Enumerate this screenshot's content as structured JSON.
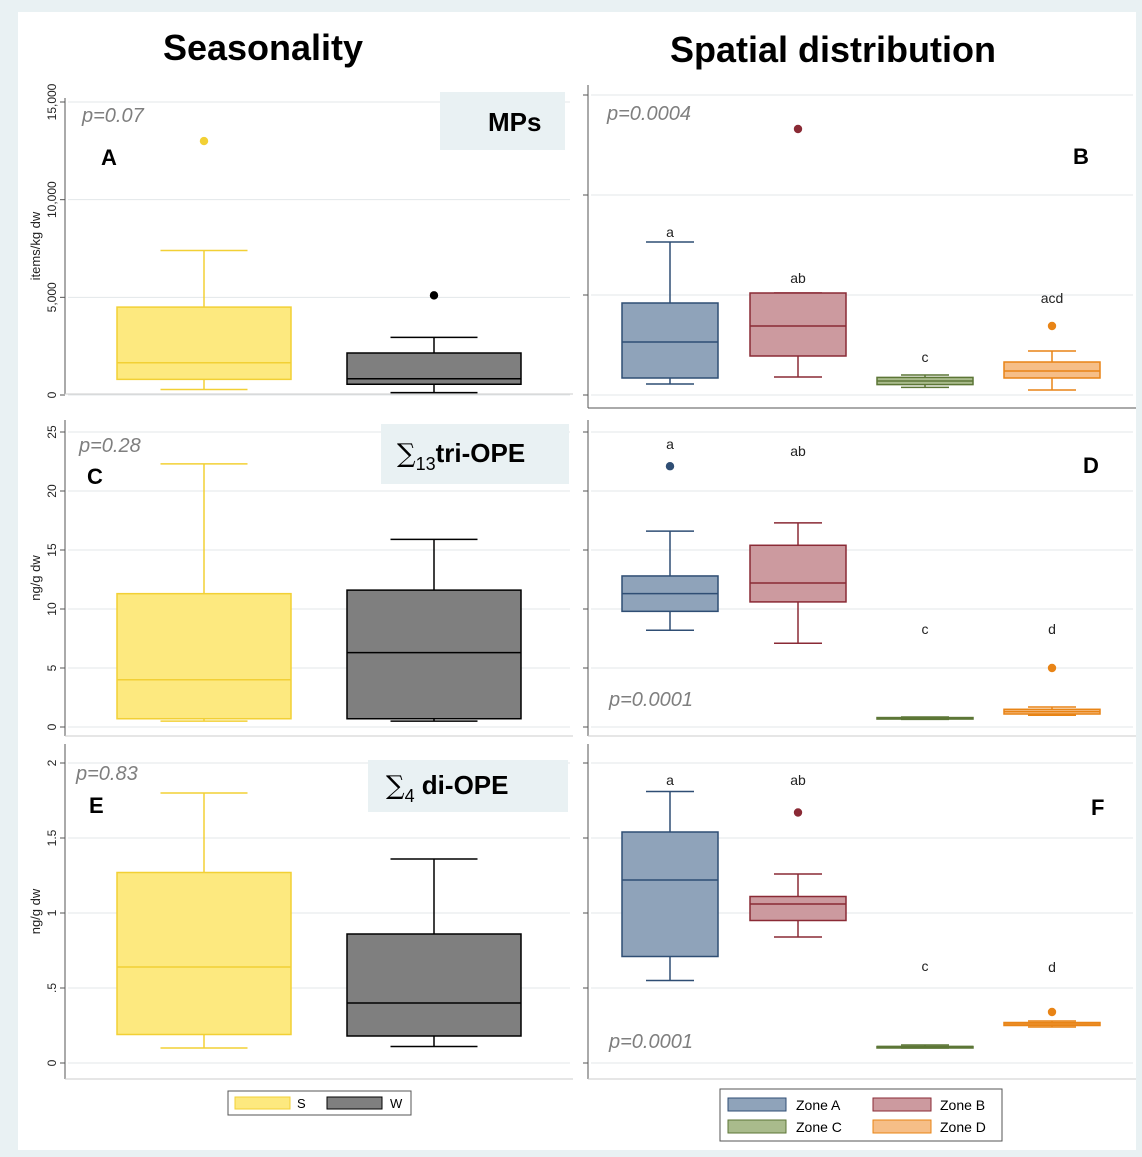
{
  "headings": {
    "left": "Seasonality",
    "right": "Spatial distribution"
  },
  "colors": {
    "S_fill": "#fde97f",
    "S_stroke": "#f2d035",
    "W_fill": "#7f7f7f",
    "W_stroke": "#000000",
    "ZoneA_fill": "#8fa3ba",
    "ZoneA_stroke": "#2f4e74",
    "ZoneB_fill": "#cc9a9f",
    "ZoneB_stroke": "#8a2a35",
    "ZoneC_fill": "#a9bb8c",
    "ZoneC_stroke": "#5c7636",
    "ZoneD_fill": "#f6be87",
    "ZoneD_stroke": "#e88416",
    "frame_bg": "#e9f1f3"
  },
  "legends": {
    "seasonality": [
      "S",
      "W"
    ],
    "spatial": [
      "Zone A",
      "Zone B",
      "Zone C",
      "Zone D"
    ]
  },
  "chart_data": [
    {
      "type": "box",
      "panel": "A",
      "title": "MPs",
      "pvalue": "p=0.07",
      "ylabel": "items/kg dw",
      "ylim": [
        0,
        15000
      ],
      "yticks": [
        {
          "v": 0,
          "label": "0"
        },
        {
          "v": 5000,
          "label": "5,000"
        },
        {
          "v": 10000,
          "label": "10,000"
        },
        {
          "v": 15000,
          "label": "15,000"
        }
      ],
      "series": [
        {
          "name": "S",
          "whisker_low": 280,
          "q1": 800,
          "median": 1650,
          "q3": 4500,
          "whisker_high": 7400,
          "outliers": [
            13000
          ]
        },
        {
          "name": "W",
          "whisker_low": 120,
          "q1": 550,
          "median": 830,
          "q3": 2150,
          "whisker_high": 2950,
          "outliers": [
            5100
          ]
        }
      ]
    },
    {
      "type": "box",
      "panel": "B",
      "pvalue": "p=0.0004",
      "ylim": [
        0,
        15000
      ],
      "series": [
        {
          "name": "Zone A",
          "letter": "a",
          "whisker_low": 550,
          "q1": 850,
          "median": 2650,
          "q3": 4600,
          "whisker_high": 7650,
          "outliers": []
        },
        {
          "name": "Zone B",
          "letter": "ab",
          "whisker_low": 900,
          "q1": 1950,
          "median": 3450,
          "q3": 5100,
          "whisker_high": 5100,
          "outliers": [
            13300
          ]
        },
        {
          "name": "Zone C",
          "letter": "c",
          "whisker_low": 380,
          "q1": 520,
          "median": 700,
          "q3": 880,
          "whisker_high": 1000,
          "outliers": []
        },
        {
          "name": "Zone D",
          "letter": "acd",
          "whisker_low": 250,
          "q1": 850,
          "median": 1200,
          "q3": 1650,
          "whisker_high": 2200,
          "outliers": [
            3450
          ]
        }
      ]
    },
    {
      "type": "box",
      "panel": "C",
      "title": "∑13tri-OPE",
      "pvalue": "p=0.28",
      "ylabel": "ng/g dw",
      "ylim": [
        0,
        25
      ],
      "yticks": [
        {
          "v": 0,
          "label": "0"
        },
        {
          "v": 5,
          "label": "5"
        },
        {
          "v": 10,
          "label": "10"
        },
        {
          "v": 15,
          "label": "15"
        },
        {
          "v": 20,
          "label": "20"
        },
        {
          "v": 25,
          "label": "25"
        }
      ],
      "series": [
        {
          "name": "S",
          "whisker_low": 0.5,
          "q1": 0.7,
          "median": 4.0,
          "q3": 11.3,
          "whisker_high": 22.3,
          "outliers": []
        },
        {
          "name": "W",
          "whisker_low": 0.5,
          "q1": 0.7,
          "median": 6.3,
          "q3": 11.6,
          "whisker_high": 15.9,
          "outliers": []
        }
      ]
    },
    {
      "type": "box",
      "panel": "D",
      "pvalue": "p=0.0001",
      "ylim": [
        0,
        25
      ],
      "series": [
        {
          "name": "Zone A",
          "letter": "a",
          "whisker_low": 8.2,
          "q1": 9.8,
          "median": 11.3,
          "q3": 12.8,
          "whisker_high": 16.6,
          "outliers": [
            22.1
          ]
        },
        {
          "name": "Zone B",
          "letter": "ab",
          "whisker_low": 7.1,
          "q1": 10.6,
          "median": 12.2,
          "q3": 15.4,
          "whisker_high": 17.3,
          "outliers": []
        },
        {
          "name": "Zone C",
          "letter": "c",
          "whisker_low": 0.65,
          "q1": 0.7,
          "median": 0.75,
          "q3": 0.8,
          "whisker_high": 0.85,
          "outliers": []
        },
        {
          "name": "Zone D",
          "letter": "d",
          "whisker_low": 1.0,
          "q1": 1.1,
          "median": 1.3,
          "q3": 1.5,
          "whisker_high": 1.7,
          "outliers": [
            5.0
          ]
        }
      ]
    },
    {
      "type": "box",
      "panel": "E",
      "title": "∑4 di-OPE",
      "pvalue": "p=0.83",
      "ylabel": "ng/g dw",
      "ylim": [
        0,
        2
      ],
      "yticks": [
        {
          "v": 0,
          "label": "0"
        },
        {
          "v": 0.5,
          "label": ".5"
        },
        {
          "v": 1,
          "label": "1"
        },
        {
          "v": 1.5,
          "label": "1.5"
        },
        {
          "v": 2,
          "label": "2"
        }
      ],
      "series": [
        {
          "name": "S",
          "whisker_low": 0.1,
          "q1": 0.19,
          "median": 0.64,
          "q3": 1.27,
          "whisker_high": 1.8,
          "outliers": []
        },
        {
          "name": "W",
          "whisker_low": 0.11,
          "q1": 0.18,
          "median": 0.4,
          "q3": 0.86,
          "whisker_high": 1.36,
          "outliers": []
        }
      ]
    },
    {
      "type": "box",
      "panel": "F",
      "pvalue": "p=0.0001",
      "ylim": [
        0,
        2
      ],
      "series": [
        {
          "name": "Zone A",
          "letter": "a",
          "whisker_low": 0.55,
          "q1": 0.71,
          "median": 1.22,
          "q3": 1.54,
          "whisker_high": 1.81,
          "outliers": []
        },
        {
          "name": "Zone B",
          "letter": "ab",
          "whisker_low": 0.84,
          "q1": 0.95,
          "median": 1.06,
          "q3": 1.11,
          "whisker_high": 1.26,
          "outliers": [
            1.67
          ]
        },
        {
          "name": "Zone C",
          "letter": "c",
          "whisker_low": 0.1,
          "q1": 0.1,
          "median": 0.11,
          "q3": 0.11,
          "whisker_high": 0.12,
          "outliers": []
        },
        {
          "name": "Zone D",
          "letter": "d",
          "whisker_low": 0.24,
          "q1": 0.25,
          "median": 0.26,
          "q3": 0.27,
          "whisker_high": 0.28,
          "outliers": [
            0.34
          ]
        }
      ]
    }
  ]
}
